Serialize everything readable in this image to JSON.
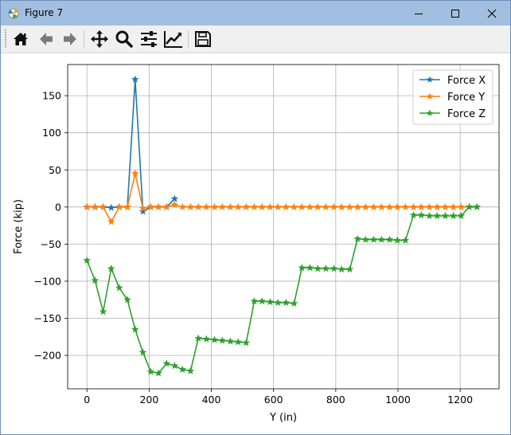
{
  "window": {
    "title": "Figure 7",
    "icons": [
      "matplotlib-icon",
      "minimize-icon",
      "maximize-icon",
      "close-icon"
    ]
  },
  "toolbar": {
    "buttons": [
      "home-icon",
      "back-icon",
      "forward-icon",
      "pan-icon",
      "zoom-icon",
      "configure-subplots-icon",
      "edit-axis-icon",
      "save-icon"
    ]
  },
  "chart_data": {
    "type": "line",
    "title": "",
    "xlabel": "Y (in)",
    "ylabel": "Force (kip)",
    "xlim": [
      -62,
      1325
    ],
    "ylim": [
      -245,
      192
    ],
    "xticks": [
      0,
      200,
      400,
      600,
      800,
      1000,
      1200
    ],
    "xtick_labels": [
      "0",
      "200",
      "400",
      "600",
      "800",
      "1000",
      "1200"
    ],
    "yticks": [
      -200,
      -150,
      -100,
      -50,
      0,
      50,
      100,
      150
    ],
    "ytick_labels": [
      "−200",
      "−150",
      "−100",
      "−50",
      "0",
      "50",
      "100",
      "150"
    ],
    "grid": true,
    "legend_position": "top-right",
    "marker": "star",
    "series": [
      {
        "name": "Force X",
        "color": "#1f77b4",
        "x": [
          0,
          26,
          52,
          78,
          104,
          130,
          155,
          180,
          205,
          230,
          256,
          282
        ],
        "y": [
          0,
          0,
          0,
          -1,
          0,
          0,
          172,
          -6,
          0,
          0,
          0,
          11
        ]
      },
      {
        "name": "Force Y",
        "color": "#ff7f0e",
        "x": [
          0,
          26,
          52,
          78,
          104,
          130,
          155,
          180,
          205,
          230,
          256,
          282,
          307,
          333,
          358,
          384,
          410,
          435,
          461,
          486,
          512,
          538,
          563,
          589,
          614,
          640,
          666,
          691,
          717,
          742,
          768,
          794,
          819,
          845,
          870,
          896,
          922,
          947,
          973,
          998,
          1024,
          1050,
          1075,
          1101,
          1126,
          1152,
          1178,
          1203,
          1229,
          1254
        ],
        "y": [
          0,
          0,
          0,
          -20,
          0,
          0,
          45,
          -2,
          0,
          0,
          0,
          3,
          0,
          0,
          0,
          0,
          0,
          0,
          0,
          0,
          0,
          0,
          0,
          0,
          0,
          0,
          0,
          0,
          0,
          0,
          0,
          0,
          0,
          0,
          0,
          0,
          0,
          0,
          0,
          0,
          0,
          0,
          0,
          0,
          0,
          0,
          0,
          0,
          0,
          0
        ]
      },
      {
        "name": "Force Z",
        "color": "#2ca02c",
        "x": [
          0,
          26,
          52,
          78,
          104,
          130,
          155,
          180,
          205,
          230,
          256,
          282,
          307,
          333,
          358,
          384,
          410,
          435,
          461,
          486,
          512,
          538,
          563,
          589,
          614,
          640,
          666,
          691,
          717,
          742,
          768,
          794,
          819,
          845,
          870,
          896,
          922,
          947,
          973,
          998,
          1024,
          1050,
          1075,
          1101,
          1126,
          1152,
          1178,
          1203,
          1229,
          1254
        ],
        "y": [
          -72,
          -99,
          -141,
          -83,
          -109,
          -125,
          -165,
          -196,
          -222,
          -224,
          -211,
          -214,
          -219,
          -221,
          -177,
          -178,
          -179,
          -180,
          -181,
          -182,
          -183,
          -127,
          -127,
          -128,
          -129,
          -129,
          -130,
          -82,
          -82,
          -83,
          -83,
          -83,
          -84,
          -84,
          -43,
          -44,
          -44,
          -44,
          -44,
          -45,
          -45,
          -11,
          -11,
          -12,
          -12,
          -12,
          -12,
          -12,
          0,
          0
        ]
      }
    ]
  }
}
